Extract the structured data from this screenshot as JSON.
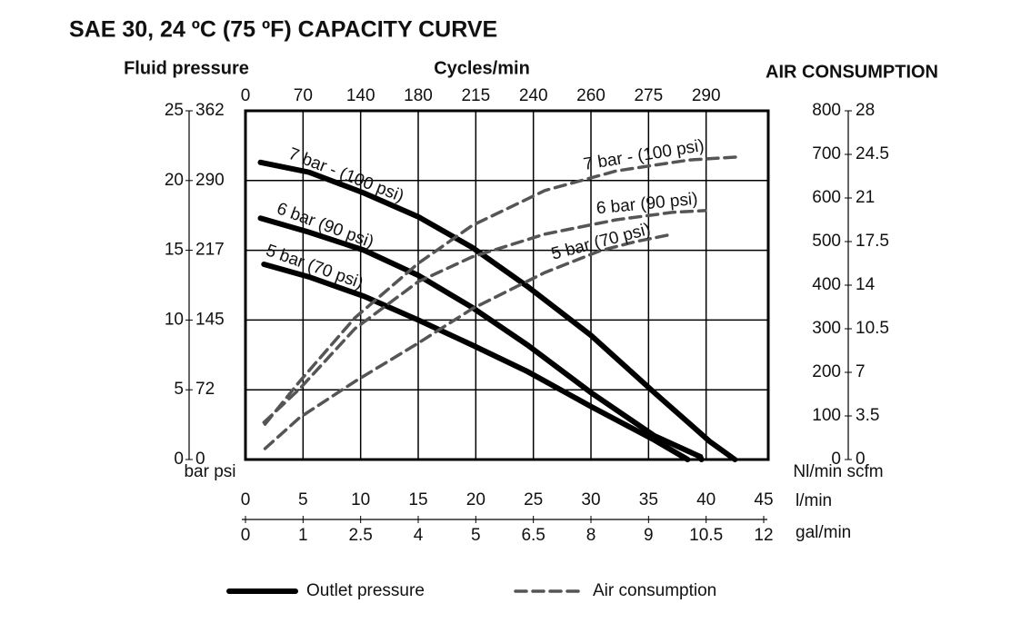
{
  "chart_data": {
    "type": "line",
    "title": "SAE 30, 24 ºC (75 ºF) CAPACITY CURVE",
    "y_title": "Fluid pressure",
    "top_title": "Cycles/min",
    "y2_title": "AIR CONSUMPTION",
    "y_units": "bar psi",
    "y2_units": "Nl/min scfm",
    "x_units": "l/min",
    "x2_units": "gal/min",
    "xlim": [
      0,
      45
    ],
    "xticks": [
      0,
      5,
      10,
      15,
      20,
      25,
      30,
      35,
      40,
      45
    ],
    "gal_ticks": [
      0,
      1,
      2.5,
      4,
      5,
      6.5,
      8,
      9,
      10.5,
      12
    ],
    "cycle_ticks": [
      0,
      70,
      140,
      180,
      215,
      240,
      260,
      275,
      290
    ],
    "ylim": [
      0,
      25
    ],
    "yticks": [
      0,
      5,
      10,
      15,
      20,
      25
    ],
    "psi_ticks": [
      0,
      72,
      145,
      217,
      290,
      362
    ],
    "y2lim": [
      0,
      800
    ],
    "y2ticks": [
      0,
      100,
      200,
      300,
      400,
      500,
      600,
      700,
      800
    ],
    "scfm_ticks": [
      0,
      3.5,
      7,
      10.5,
      14,
      17.5,
      21,
      24.5,
      28
    ],
    "grid": true,
    "groups": [
      {
        "name": "Outlet pressure",
        "axis": "y",
        "dashed": false,
        "color": "#000000",
        "series": [
          {
            "name": "7 bar - (100 psi)",
            "x": [
              1.3,
              5.5,
              10.3,
              15,
              19.7,
              24.5,
              30,
              35.5,
              40.3,
              42.5
            ],
            "values": [
              21.3,
              20.6,
              19.1,
              17.4,
              15.2,
              12.4,
              8.9,
              4.8,
              1.3,
              0
            ]
          },
          {
            "name": "6 bar (90 psi)",
            "x": [
              1.3,
              5.5,
              10.3,
              15,
              19.7,
              24.5,
              30,
              35.5,
              39.5,
              39.6
            ],
            "values": [
              17.3,
              16.3,
              15.0,
              13.2,
              10.9,
              8.2,
              4.8,
              1.7,
              0.2,
              0
            ]
          },
          {
            "name": "5 bar (70 psi)",
            "x": [
              1.6,
              5.5,
              10.3,
              15,
              19.7,
              24.5,
              30,
              35.5,
              38.4
            ],
            "values": [
              14.0,
              13.1,
              11.7,
              10.0,
              8.2,
              6.3,
              3.8,
              1.4,
              0
            ]
          }
        ]
      },
      {
        "name": "Air consumption",
        "axis": "y2",
        "dashed": true,
        "color": "#555555",
        "series": [
          {
            "name": "7 bar - (100 psi)",
            "x": [
              1.7,
              4.7,
              9.5,
              15,
              19.7,
              26,
              32.2,
              38.5,
              42.6
            ],
            "values": [
              81,
              179,
              325,
              450,
              537,
              617,
              662,
              687,
              694
            ]
          },
          {
            "name": "6 bar (90 psi)",
            "x": [
              1.6,
              4.7,
              9.5,
              15,
              19.7,
              26,
              32.2,
              37.1,
              39.9
            ],
            "values": [
              85,
              162,
              300,
              408,
              465,
              517,
              550,
              567,
              571
            ]
          },
          {
            "name": "5 bar (70 psi)",
            "x": [
              1.7,
              4.7,
              9.5,
              15,
              19.7,
              26,
              30.8,
              33.9,
              37.1
            ],
            "values": [
              25,
              96,
              179,
              267,
              346,
              429,
              479,
              500,
              517
            ]
          }
        ]
      }
    ]
  }
}
